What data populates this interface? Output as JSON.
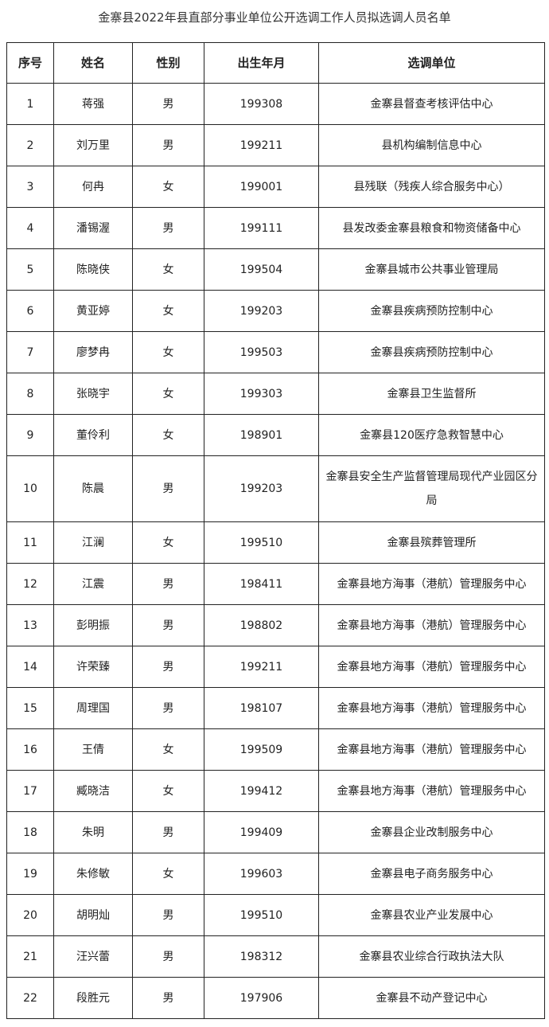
{
  "title": "金寨县2022年县直部分事业单位公开选调工作人员拟选调人员名单",
  "table": {
    "headers": [
      "序号",
      "姓名",
      "性别",
      "出生年月",
      "选调单位"
    ],
    "rows": [
      [
        "1",
        "蒋强",
        "男",
        "199308",
        "金寨县督查考核评估中心"
      ],
      [
        "2",
        "刘万里",
        "男",
        "199211",
        "县机构编制信息中心"
      ],
      [
        "3",
        "何冉",
        "女",
        "199001",
        "县残联（残疾人综合服务中心）"
      ],
      [
        "4",
        "潘锡渥",
        "男",
        "199111",
        "县发改委金寨县粮食和物资储备中心"
      ],
      [
        "5",
        "陈晓侠",
        "女",
        "199504",
        "金寨县城市公共事业管理局"
      ],
      [
        "6",
        "黄亚婷",
        "女",
        "199203",
        "金寨县疾病预防控制中心"
      ],
      [
        "7",
        "廖梦冉",
        "女",
        "199503",
        "金寨县疾病预防控制中心"
      ],
      [
        "8",
        "张晓宇",
        "女",
        "199303",
        "金寨县卫生监督所"
      ],
      [
        "9",
        "董伶利",
        "女",
        "198901",
        "金寨县120医疗急救智慧中心"
      ],
      [
        "10",
        "陈晨",
        "男",
        "199203",
        "金寨县安全生产监督管理局现代产业园区分局"
      ],
      [
        "11",
        "江澜",
        "女",
        "199510",
        "金寨县殡葬管理所"
      ],
      [
        "12",
        "江震",
        "男",
        "198411",
        "金寨县地方海事（港航）管理服务中心"
      ],
      [
        "13",
        "彭明振",
        "男",
        "198802",
        "金寨县地方海事（港航）管理服务中心"
      ],
      [
        "14",
        "许荣臻",
        "男",
        "199211",
        "金寨县地方海事（港航）管理服务中心"
      ],
      [
        "15",
        "周理国",
        "男",
        "198107",
        "金寨县地方海事（港航）管理服务中心"
      ],
      [
        "16",
        "王倩",
        "女",
        "199509",
        "金寨县地方海事（港航）管理服务中心"
      ],
      [
        "17",
        "臧晓洁",
        "女",
        "199412",
        "金寨县地方海事（港航）管理服务中心"
      ],
      [
        "18",
        "朱明",
        "男",
        "199409",
        "金寨县企业改制服务中心"
      ],
      [
        "19",
        "朱修敏",
        "女",
        "199603",
        "金寨县电子商务服务中心"
      ],
      [
        "20",
        "胡明灿",
        "男",
        "199510",
        "金寨县农业产业发展中心"
      ],
      [
        "21",
        "汪兴蕾",
        "男",
        "198312",
        "金寨县农业综合行政执法大队"
      ],
      [
        "22",
        "段胜元",
        "男",
        "197906",
        "金寨县不动产登记中心"
      ]
    ]
  }
}
